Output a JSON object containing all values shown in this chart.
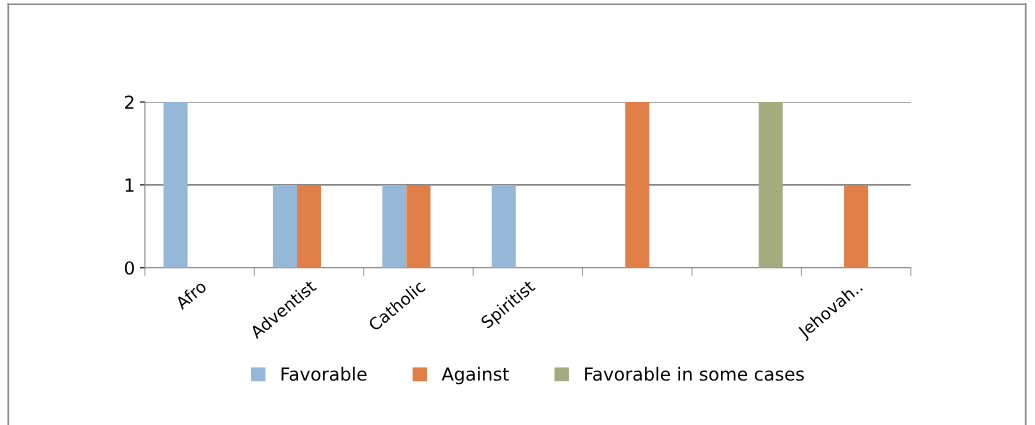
{
  "chart_data": {
    "type": "bar",
    "categories": [
      "Afro",
      "Adventist",
      "Catholic",
      "Spiritist",
      null,
      null,
      "Jehovah.."
    ],
    "series": [
      {
        "name": "Favorable",
        "color": "#95b8d8",
        "values": [
          2,
          1,
          1,
          1,
          null,
          null,
          null
        ]
      },
      {
        "name": "Against",
        "color": "#e07f47",
        "values": [
          null,
          1,
          1,
          null,
          2,
          null,
          1
        ]
      },
      {
        "name": "Favorable in some cases",
        "color": "#a4ab7f",
        "values": [
          null,
          null,
          null,
          null,
          null,
          2,
          null
        ]
      }
    ],
    "ylim": [
      0,
      2
    ],
    "yticks": [
      0,
      1,
      2
    ],
    "grid": "y",
    "legend": "bottom"
  }
}
